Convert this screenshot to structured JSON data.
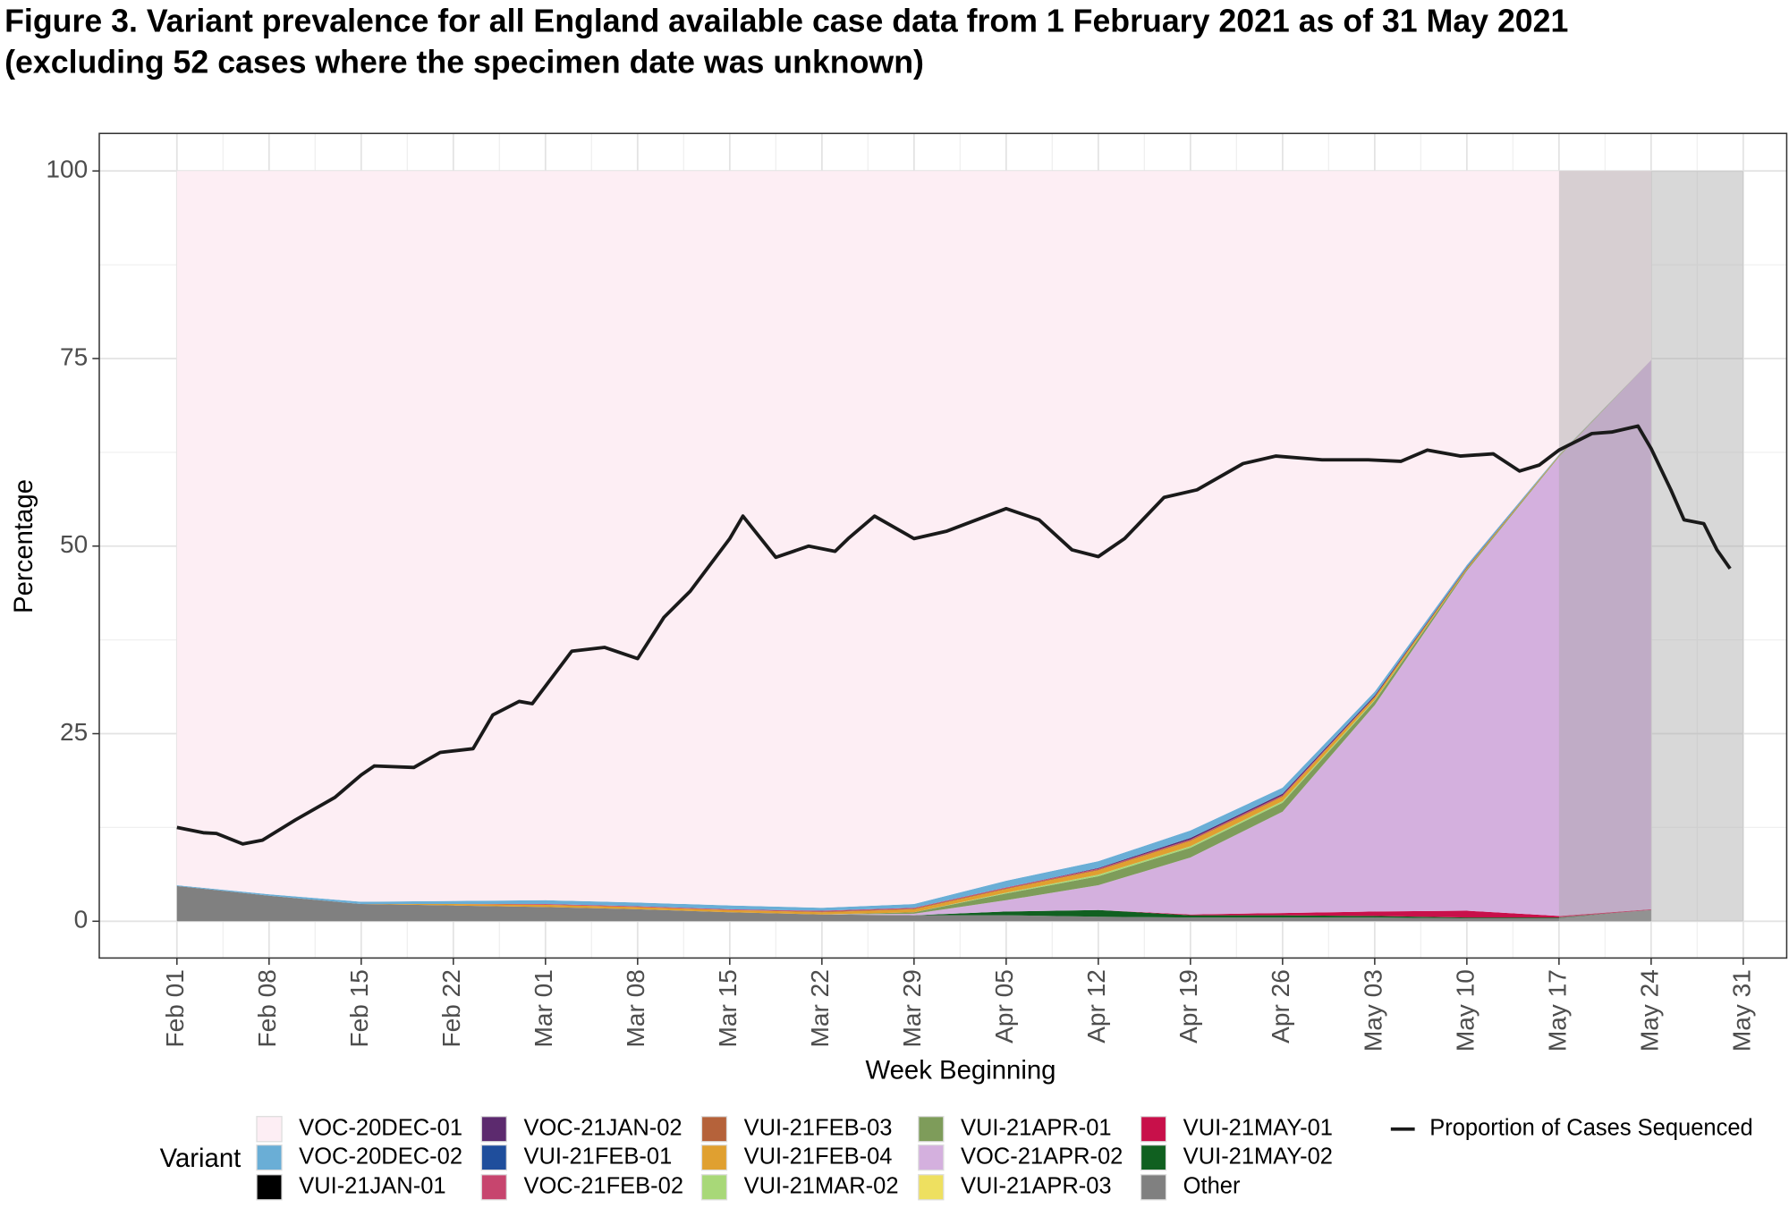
{
  "chart_data": {
    "type": "stacked_area",
    "title": "Figure 3. Variant prevalence for all England available case data from 1 February 2021 as of 31 May 2021",
    "subtitle": "(excluding 52 cases where the specimen date was unknown)",
    "x_label": "Week Beginning",
    "y_label": "Percentage",
    "legend_title": "Variant",
    "xlim": [
      -5.9,
      122.3
    ],
    "ylim": [
      -4.9,
      105
    ],
    "yticks": [
      0,
      25,
      50,
      75,
      100
    ],
    "xticks": [
      {
        "value": 0,
        "label": "Feb 01"
      },
      {
        "value": 7,
        "label": "Feb 08"
      },
      {
        "value": 14,
        "label": "Feb 15"
      },
      {
        "value": 21,
        "label": "Feb 22"
      },
      {
        "value": 28,
        "label": "Mar 01"
      },
      {
        "value": 35,
        "label": "Mar 08"
      },
      {
        "value": 42,
        "label": "Mar 15"
      },
      {
        "value": 49,
        "label": "Mar 22"
      },
      {
        "value": 56,
        "label": "Mar 29"
      },
      {
        "value": 63,
        "label": "Apr 05"
      },
      {
        "value": 70,
        "label": "Apr 12"
      },
      {
        "value": 77,
        "label": "Apr 19"
      },
      {
        "value": 84,
        "label": "Apr 26"
      },
      {
        "value": 91,
        "label": "May 03"
      },
      {
        "value": 98,
        "label": "May 10"
      },
      {
        "value": 105,
        "label": "May 17"
      },
      {
        "value": 112,
        "label": "May 24"
      },
      {
        "value": 119,
        "label": "May 31"
      }
    ],
    "grid": true,
    "shaded": [
      {
        "xlim": [
          105,
          112
        ],
        "color": "#a9a9a9",
        "opacity": 0.45
      },
      {
        "xlim": [
          112,
          119
        ],
        "color": "#a9a9a9",
        "opacity": 0.45
      }
    ],
    "x": [
      0,
      7,
      14,
      21,
      28,
      35,
      42,
      49,
      56,
      63,
      70,
      77,
      84,
      91,
      98,
      105,
      112
    ],
    "series": [
      {
        "name": "VOC-20DEC-01",
        "color": "#fdeef4",
        "values": [
          95.2,
          96.4,
          97.4,
          97.3,
          97.2,
          97.5,
          97.9,
          98.2,
          97.7,
          94.6,
          92.0,
          87.9,
          82.2,
          69.4,
          52.5,
          37.8,
          25.2
        ]
      },
      {
        "name": "VOC-20DEC-02",
        "color": "#6aaed6",
        "values": [
          0.1,
          0.2,
          0.3,
          0.4,
          0.5,
          0.5,
          0.5,
          0.4,
          0.5,
          0.9,
          0.9,
          1.0,
          0.8,
          0.5,
          0.3,
          0.1,
          0
        ]
      },
      {
        "name": "VUI-21JAN-01",
        "color": "#000000",
        "values": [
          0,
          0,
          0,
          0,
          0,
          0,
          0,
          0,
          0,
          0,
          0,
          0,
          0,
          0,
          0,
          0,
          0
        ]
      },
      {
        "name": "VOC-21JAN-02",
        "color": "#5c2a6e",
        "values": [
          0,
          0,
          0,
          0,
          0,
          0,
          0,
          0,
          0,
          0,
          0.1,
          0.2,
          0.2,
          0.2,
          0.1,
          0,
          0
        ]
      },
      {
        "name": "VUI-21FEB-01",
        "color": "#1f4e9c",
        "values": [
          0,
          0,
          0,
          0,
          0,
          0,
          0,
          0,
          0,
          0,
          0,
          0,
          0,
          0,
          0,
          0,
          0
        ]
      },
      {
        "name": "VOC-21FEB-02",
        "color": "#c7456e",
        "values": [
          0,
          0,
          0,
          0,
          0.1,
          0.1,
          0.1,
          0.1,
          0.1,
          0.1,
          0.1,
          0.1,
          0.1,
          0,
          0,
          0,
          0
        ]
      },
      {
        "name": "VUI-21FEB-03",
        "color": "#b5623a",
        "values": [
          0,
          0,
          0,
          0,
          0,
          0,
          0,
          0.1,
          0.1,
          0.1,
          0.1,
          0.1,
          0.1,
          0,
          0,
          0,
          0
        ]
      },
      {
        "name": "VUI-21FEB-04",
        "color": "#e0a030",
        "values": [
          0,
          0,
          0,
          0.2,
          0.3,
          0.3,
          0.3,
          0.3,
          0.4,
          0.5,
          0.6,
          0.7,
          0.6,
          0.4,
          0.2,
          0.1,
          0
        ]
      },
      {
        "name": "VUI-21MAR-02",
        "color": "#a8d878",
        "values": [
          0,
          0,
          0,
          0,
          0,
          0,
          0,
          0,
          0,
          0.1,
          0.2,
          0.2,
          0.2,
          0.1,
          0,
          0,
          0
        ]
      },
      {
        "name": "VUI-21APR-01",
        "color": "#7e9c5a",
        "values": [
          0,
          0,
          0,
          0,
          0,
          0,
          0,
          0,
          0.2,
          0.9,
          1.2,
          1.3,
          1.2,
          0.6,
          0.2,
          0.1,
          0
        ]
      },
      {
        "name": "VOC-21APR-02",
        "color": "#d4b0de",
        "values": [
          0,
          0,
          0,
          0,
          0,
          0,
          0,
          0,
          0.2,
          1.5,
          3.3,
          7.6,
          13.5,
          27.5,
          45.3,
          61.2,
          73.2
        ]
      },
      {
        "name": "VUI-21APR-03",
        "color": "#eee060",
        "values": [
          0,
          0,
          0,
          0,
          0,
          0,
          0,
          0,
          0,
          0,
          0,
          0,
          0,
          0,
          0,
          0,
          0
        ]
      },
      {
        "name": "VUI-21MAY-01",
        "color": "#c8104a",
        "values": [
          0,
          0,
          0,
          0,
          0,
          0,
          0,
          0,
          0,
          0,
          0,
          0.1,
          0.3,
          0.6,
          0.9,
          0.2,
          0.1
        ]
      },
      {
        "name": "VUI-21MAY-02",
        "color": "#106020",
        "values": [
          0,
          0,
          0,
          0,
          0,
          0,
          0,
          0,
          0,
          0.5,
          0.9,
          0.3,
          0.3,
          0.2,
          0.1,
          0.1,
          0
        ]
      },
      {
        "name": "Other",
        "color": "#808080",
        "values": [
          4.7,
          3.4,
          2.3,
          2.1,
          1.9,
          1.6,
          1.2,
          0.9,
          0.8,
          0.8,
          0.6,
          0.5,
          0.5,
          0.5,
          0.4,
          0.4,
          1.5
        ]
      }
    ],
    "line": {
      "name": "Proportion of Cases Sequenced",
      "color": "#1a1a1a",
      "x": [
        0,
        2,
        3,
        5,
        6.5,
        9,
        12,
        14,
        15,
        18,
        20,
        22.5,
        24,
        26,
        27,
        30,
        32.5,
        35,
        37,
        39,
        42,
        43,
        45.5,
        48,
        50,
        51,
        53,
        56,
        58.5,
        63,
        65.5,
        68,
        70,
        72,
        75,
        77.5,
        81,
        83.5,
        87,
        90.5,
        93,
        95,
        97.5,
        100,
        102,
        103.5,
        105,
        107.5,
        109,
        111,
        112,
        113.5,
        114.5,
        116,
        117,
        118
      ],
      "values": [
        12.5,
        11.8,
        11.7,
        10.3,
        10.8,
        13.5,
        16.5,
        19.5,
        20.7,
        20.5,
        22.5,
        23,
        27.5,
        29.3,
        29,
        36,
        36.5,
        35,
        40.5,
        44,
        51,
        54,
        48.5,
        50,
        49.3,
        51,
        54,
        51,
        52,
        55,
        53.5,
        49.5,
        48.6,
        51,
        56.5,
        57.5,
        61,
        62,
        61.5,
        61.5,
        61.3,
        62.8,
        62,
        62.3,
        60,
        60.8,
        62.8,
        65,
        65.2,
        66,
        63,
        57.5,
        53.5,
        53,
        49.5,
        47
      ]
    }
  }
}
